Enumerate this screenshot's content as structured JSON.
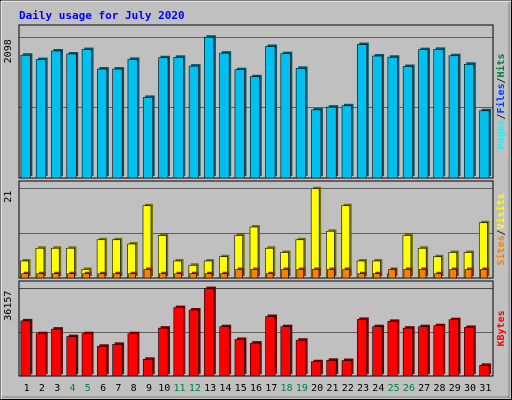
{
  "colors": {
    "frame_bg": "#c0c0c0",
    "title": "#0000ff",
    "day": "#000000",
    "weekend_day": "#008040",
    "hits": "#00c0f0",
    "files": "#0040ff",
    "pages": "#00ffff",
    "visits": "#ffff00",
    "sites": "#ff8000",
    "kbytes": "#ff0000"
  },
  "chart_data": {
    "type": "bar",
    "title": "Daily usage for July 2020",
    "categories": [
      "1",
      "2",
      "3",
      "4",
      "5",
      "6",
      "7",
      "8",
      "9",
      "10",
      "11",
      "12",
      "13",
      "14",
      "15",
      "16",
      "17",
      "18",
      "19",
      "20",
      "21",
      "22",
      "23",
      "24",
      "25",
      "26",
      "27",
      "28",
      "29",
      "30",
      "31"
    ],
    "weekend_days": [
      "4",
      "5",
      "11",
      "12",
      "18",
      "19",
      "25",
      "26"
    ],
    "panels": [
      {
        "id": "hits",
        "ymax_label": "2098",
        "ylim": [
          0,
          2098
        ],
        "legend": [
          {
            "text": "Pages",
            "color": "pages"
          },
          {
            "text": "Files",
            "color": "files"
          },
          {
            "text": "Hits",
            "color": "weekend_day"
          }
        ],
        "series": [
          {
            "values": [
              1830,
              1765,
              1893,
              1848,
              1914,
              1624,
              1624,
              1768,
              1201,
              1792,
              1799,
              1668,
              2098,
              1861,
              1614,
              1509,
              1960,
              1853,
              1634,
              1015,
              1056,
              1076,
              1989,
              1818,
              1800,
              1662,
              1913,
              1917,
              1822,
              1695,
              1002
            ],
            "color": "hits"
          }
        ]
      },
      {
        "id": "visits",
        "ymax_label": "21",
        "ylim": [
          0,
          21
        ],
        "legend": [
          {
            "text": "Sites",
            "color": "sites"
          },
          {
            "text": "Visits",
            "color": "visits"
          }
        ],
        "series": [
          {
            "values": [
              4,
              7,
              7,
              7,
              2,
              9,
              9,
              8,
              17,
              10,
              4,
              3,
              4,
              5,
              10,
              12,
              7,
              6,
              9,
              21,
              11,
              17,
              4,
              4,
              1,
              10,
              7,
              5,
              6,
              6,
              13
            ],
            "color": "visits"
          },
          {
            "values": [
              1,
              1,
              1,
              1,
              1,
              1,
              1,
              1,
              2,
              1,
              1,
              1,
              1,
              1,
              2,
              2,
              1,
              2,
              2,
              2,
              2,
              2,
              1,
              1,
              2,
              2,
              2,
              1,
              2,
              2,
              2
            ],
            "color": "sites"
          }
        ]
      },
      {
        "id": "kbytes",
        "ymax_label": "36157",
        "ylim": [
          0,
          36157
        ],
        "legend": [
          {
            "text": "KBytes",
            "color": "kbytes"
          }
        ],
        "series": [
          {
            "values": [
              22800,
              17500,
              19400,
              16300,
              17500,
              12300,
              13100,
              17500,
              6900,
              19800,
              28300,
              27300,
              36157,
              20400,
              15100,
              13600,
              24600,
              20400,
              14800,
              5900,
              6500,
              6400,
              23400,
              20400,
              22600,
              19800,
              20400,
              20800,
              23300,
              20100,
              4400
            ],
            "color": "kbytes"
          }
        ]
      }
    ]
  }
}
